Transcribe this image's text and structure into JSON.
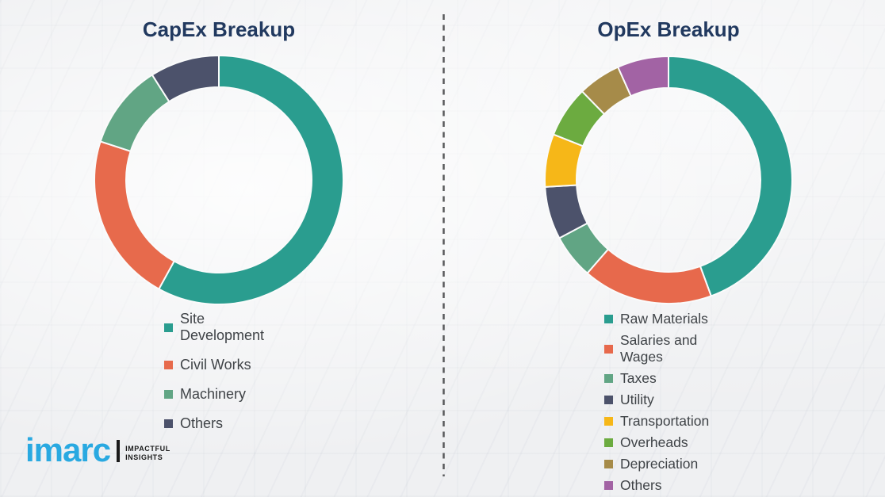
{
  "chart_data": [
    {
      "type": "donut",
      "title": "CapEx Breakup",
      "labels": [
        "Site Development",
        "Civil Works",
        "Machinery",
        "Others"
      ],
      "values": [
        58,
        22,
        11,
        9
      ],
      "colors": [
        "#2a9d8f",
        "#e76a4c",
        "#61a584",
        "#4c526b"
      ],
      "legend_position": "bottom-left",
      "start_angle_deg": 0,
      "direction": "clockwise"
    },
    {
      "type": "donut",
      "title": "OpEx Breakup",
      "labels": [
        "Raw Materials",
        "Salaries and Wages",
        "Taxes",
        "Utility",
        "Transportation",
        "Overheads",
        "Depreciation",
        "Others"
      ],
      "values": [
        44.4,
        17.0,
        5.8,
        6.9,
        6.9,
        6.7,
        5.6,
        6.7
      ],
      "colors": [
        "#2a9d8f",
        "#e7694c",
        "#61a584",
        "#4c526b",
        "#f6b718",
        "#6cab40",
        "#a68b49",
        "#a263a4"
      ],
      "legend_position": "bottom-left",
      "start_angle_deg": 0,
      "direction": "clockwise"
    }
  ],
  "divider": {
    "style": "dashed",
    "color": "#58595b"
  },
  "logo": {
    "brand": "imarc",
    "brand_color": "#29a9e1",
    "tagline_line1": "IMPACTFUL",
    "tagline_line2": "INSIGHTS"
  }
}
